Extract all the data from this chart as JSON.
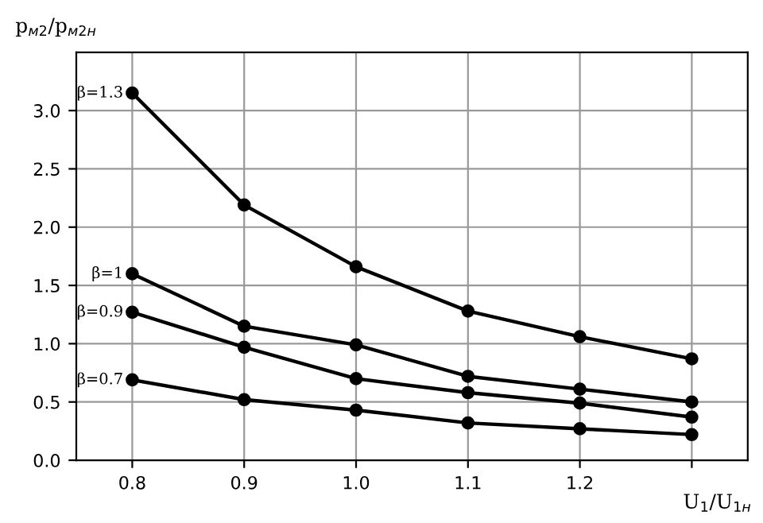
{
  "chart_data": {
    "type": "line",
    "xlabel": "U$_{1}$/U$_{1н}$",
    "ylabel": "p$_{м2}$/p$_{м2н}$",
    "x": [
      0.8,
      0.9,
      1.0,
      1.1,
      1.2,
      1.3
    ],
    "series": [
      {
        "name": "β=1.3",
        "color": "#000000",
        "values": [
          3.15,
          2.19,
          1.66,
          1.28,
          1.06,
          0.87
        ]
      },
      {
        "name": "β=1",
        "color": "#000000",
        "values": [
          1.6,
          1.15,
          0.99,
          0.72,
          0.61,
          0.5
        ]
      },
      {
        "name": "β=0.9",
        "color": "#000000",
        "values": [
          1.27,
          0.97,
          0.7,
          0.58,
          0.49,
          0.37
        ]
      },
      {
        "name": "β=0.7",
        "color": "#000000",
        "values": [
          0.69,
          0.52,
          0.43,
          0.32,
          0.27,
          0.22
        ]
      }
    ],
    "xlim": [
      0.75,
      1.35
    ],
    "ylim": [
      0,
      3.5
    ],
    "xticks": [
      0.8,
      0.9,
      {
        "value": 1,
        "label": "1.0"
      },
      1.1,
      1.2,
      {
        "value": 1.3,
        "label": null
      }
    ],
    "yticks": [
      {
        "value": 0,
        "label": "0.0"
      },
      0.5,
      {
        "value": 1,
        "label": "1.0"
      },
      1.5,
      {
        "value": 2,
        "label": "2.0"
      },
      2.5,
      {
        "value": 3,
        "label": "3.0"
      }
    ],
    "grid": true,
    "marker": "circle",
    "line_style": "solid",
    "legend": false
  }
}
